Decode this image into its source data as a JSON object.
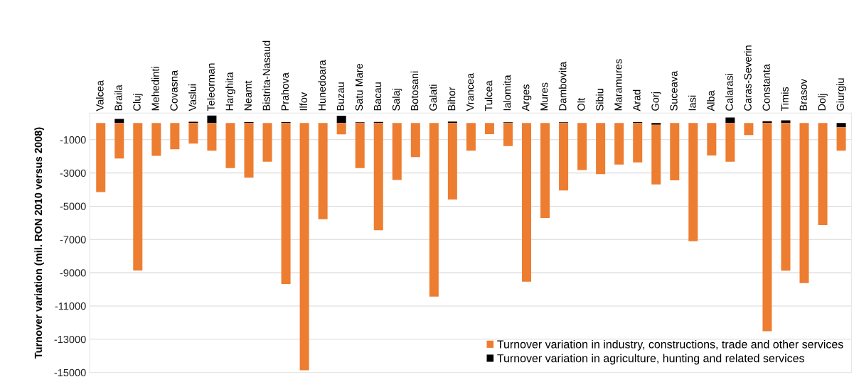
{
  "chart_data": {
    "type": "bar",
    "stacked": true,
    "ylabel": "Turnover variation (mil. RON 2010 versus 2008)",
    "categories": [
      "Valcea",
      "Braila",
      "Cluj",
      "Mehedinti",
      "Covasna",
      "Vaslui",
      "Teleorman",
      "Harghita",
      "Neamt",
      "Bistrita-Nasaud",
      "Prahova",
      "Ilfov",
      "Hunedoara",
      "Buzau",
      "Satu Mare",
      "Bacau",
      "Salaj",
      "Botosani",
      "Galati",
      "Bihor",
      "Vrancea",
      "Tulcea",
      "Ialomita",
      "Arges",
      "Mures",
      "Dambovita",
      "Olt",
      "Sibiu",
      "Maramures",
      "Arad",
      "Gorj",
      "Suceava",
      "Iasi",
      "Alba",
      "Calarasi",
      "Caras-Severin",
      "Constanta",
      "Timis",
      "Brasov",
      "Dolj",
      "Giurgiu"
    ],
    "series": [
      {
        "name": "Turnover variation in agriculture, hunting and related services",
        "color": "#000000",
        "values": [
          0,
          250,
          0,
          0,
          0,
          80,
          450,
          0,
          60,
          0,
          60,
          0,
          0,
          440,
          50,
          70,
          0,
          0,
          0,
          90,
          0,
          0,
          50,
          0,
          0,
          50,
          0,
          0,
          0,
          60,
          -100,
          0,
          0,
          0,
          330,
          0,
          110,
          160,
          0,
          null,
          -250
        ]
      },
      {
        "name": "Turnover variation in industry, constructions, trade and other services",
        "color": "#ed7d31",
        "values": [
          -4150,
          -2130,
          -8870,
          -1970,
          -1580,
          -1230,
          -1660,
          -2710,
          -3280,
          -2320,
          -9680,
          -14870,
          -5780,
          -680,
          -2710,
          -6440,
          -3420,
          -2050,
          -10440,
          -4600,
          -1660,
          -670,
          -1380,
          -9540,
          -5710,
          -4050,
          -2820,
          -3070,
          -2490,
          -2370,
          -3590,
          -3440,
          -7110,
          -1950,
          -2320,
          -720,
          -12520,
          -8880,
          -9620,
          -6130,
          -1410
        ]
      }
    ],
    "ylim": [
      -15000,
      600
    ],
    "yticks": [
      -1000,
      -3000,
      -5000,
      -7000,
      -9000,
      -11000,
      -13000,
      -15000
    ],
    "grid": "y",
    "legend": "bottom right"
  }
}
